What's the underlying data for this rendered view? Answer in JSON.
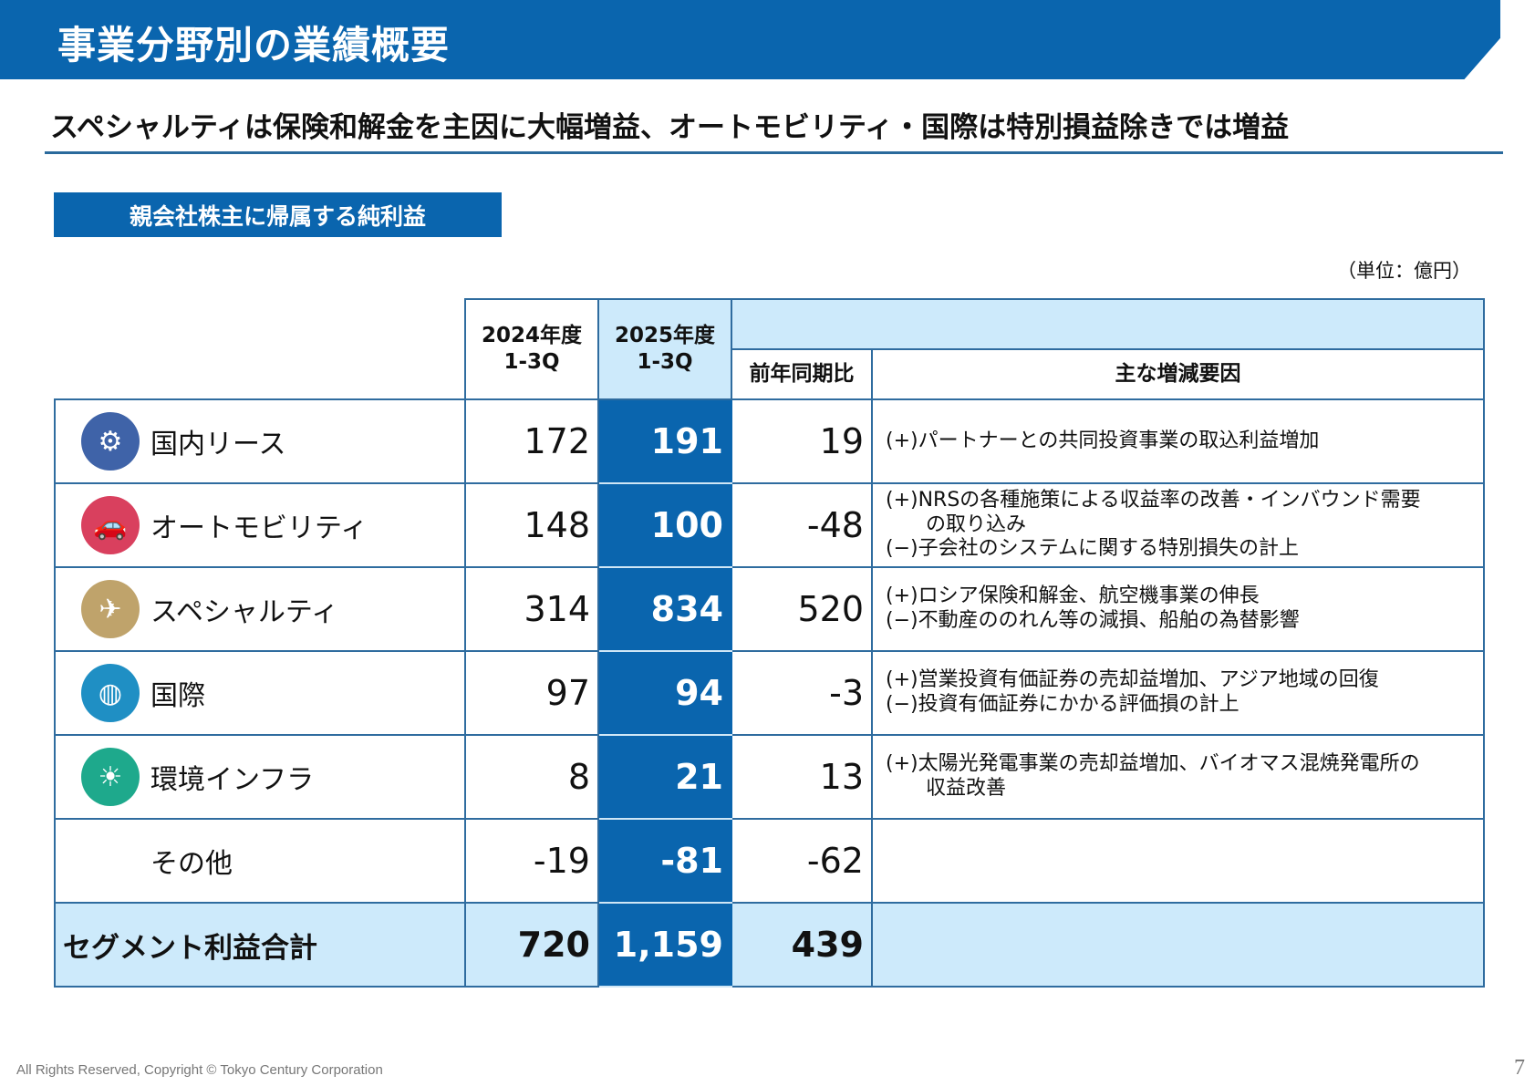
{
  "header": {
    "title": "事業分野別の業績概要",
    "subtitle": "スペシャルティは保険和解金を主因に大幅増益、オートモビリティ・国際は特別損益除きでは増益"
  },
  "section_label": "親会社株主に帰属する純利益",
  "unit": "（単位：億円）",
  "table": {
    "headers": {
      "fy2024": "2024年度",
      "fy2024_q": "1-3Q",
      "fy2025": "2025年度",
      "fy2025_q": "1-3Q",
      "yoy": "前年同期比",
      "factors": "主な増減要因"
    },
    "rows": [
      {
        "segment": "国内リース",
        "icon": "construction-machinery-icon",
        "color": "#3f63a8",
        "fy2024": "172",
        "fy2025": "191",
        "yoy": "19",
        "factors": [
          "(+)パートナーとの共同投資事業の取込利益増加"
        ]
      },
      {
        "segment": "オートモビリティ",
        "icon": "car-icon",
        "color": "#d9405e",
        "fy2024": "148",
        "fy2025": "100",
        "yoy": "-48",
        "factors": [
          "(+)NRSの各種施策による収益率の改善・インバウンド需要",
          "の取り込み",
          "(−)子会社のシステムに関する特別損失の計上"
        ]
      },
      {
        "segment": "スペシャルティ",
        "icon": "airplane-building-icon",
        "color": "#bfa36b",
        "fy2024": "314",
        "fy2025": "834",
        "yoy": "520",
        "factors": [
          "(+)ロシア保険和解金、航空機事業の伸長",
          "(−)不動産ののれん等の減損、船舶の為替影響"
        ]
      },
      {
        "segment": "国際",
        "icon": "globe-icon",
        "color": "#1f8fc4",
        "fy2024": "97",
        "fy2025": "94",
        "yoy": "-3",
        "factors": [
          "(+)営業投資有価証券の売却益増加、アジア地域の回復",
          "(−)投資有価証券にかかる評価損の計上"
        ]
      },
      {
        "segment": "環境インフラ",
        "icon": "solar-panel-icon",
        "color": "#1ea98c",
        "fy2024": "8",
        "fy2025": "21",
        "yoy": "13",
        "factors": [
          "(+)太陽光発電事業の売却益増加、バイオマス混焼発電所の",
          "収益改善"
        ]
      },
      {
        "segment": "その他",
        "icon": "",
        "color": "",
        "fy2024": "-19",
        "fy2025": "-81",
        "yoy": "-62",
        "factors": []
      }
    ],
    "total": {
      "segment": "セグメント利益合計",
      "fy2024": "720",
      "fy2025": "1,159",
      "yoy": "439"
    }
  },
  "footer": {
    "copyright": "All Rights Reserved, Copyright © Tokyo Century Corporation",
    "page": "7"
  }
}
